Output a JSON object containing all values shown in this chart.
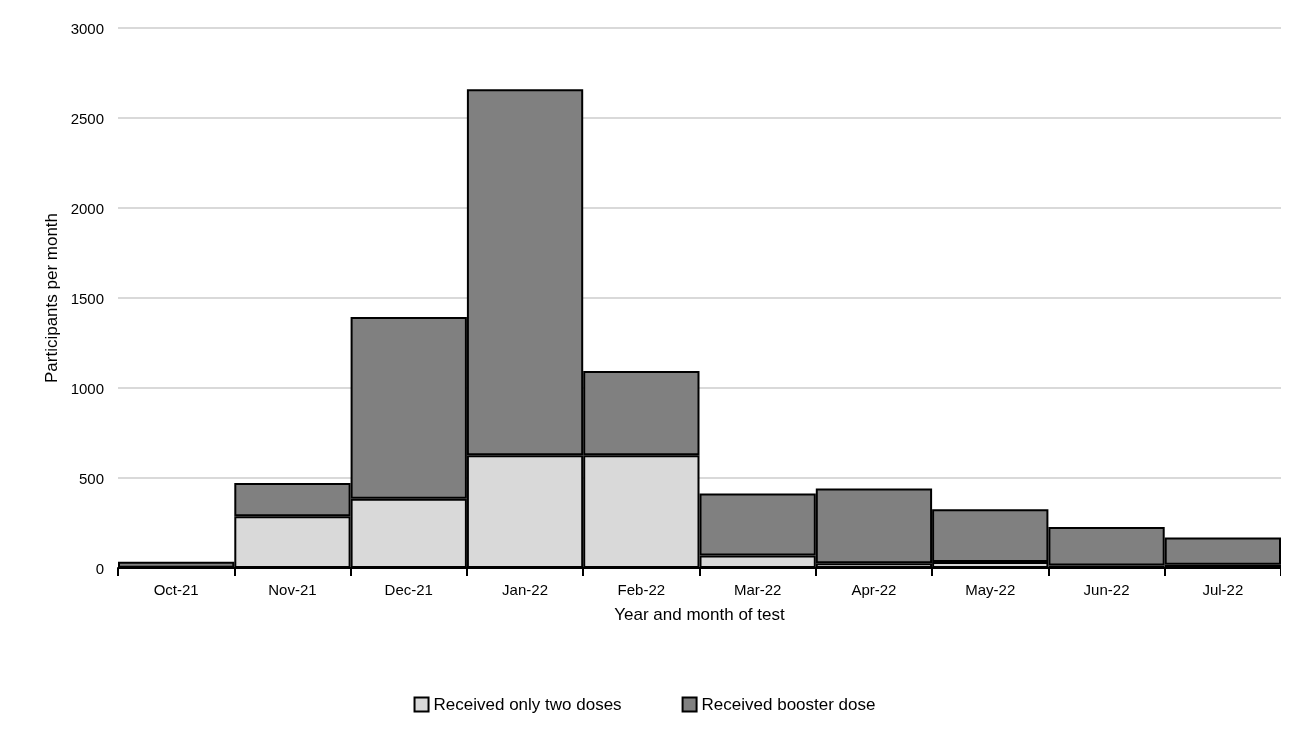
{
  "chart_data": {
    "type": "bar",
    "stacked": true,
    "xlabel": "Year and month of test",
    "ylabel": "Participants per month",
    "categories": [
      "Oct-21",
      "Nov-21",
      "Dec-21",
      "Jan-22",
      "Feb-22",
      "Mar-22",
      "Apr-22",
      "May-22",
      "Jun-22",
      "Jul-22"
    ],
    "series": [
      {
        "name": "Received only two doses",
        "color": "#d9d9d9",
        "values": [
          2,
          287,
          385,
          627,
          627,
          69,
          27,
          34,
          14,
          18
        ]
      },
      {
        "name": "Received booster dose",
        "color": "#808080",
        "values": [
          33,
          185,
          1010,
          2033,
          468,
          345,
          414,
          293,
          214,
          152
        ]
      }
    ],
    "ylim": [
      0,
      3000
    ],
    "yticks": [
      0,
      500,
      1000,
      1500,
      2000,
      2500,
      3000
    ],
    "grid": "y",
    "legend": "bottom"
  }
}
